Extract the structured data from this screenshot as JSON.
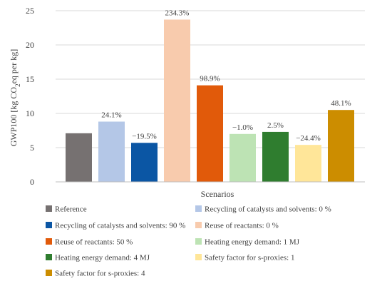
{
  "chart_data": {
    "type": "bar",
    "xlabel": "Scenarios",
    "ylabel": "GWP100 [kg CO2eq per kg]",
    "ylabel_parts": {
      "pre": "GWP100 [kg CO",
      "sub": "2",
      "post": "eq per kg]"
    },
    "ylim": [
      0,
      25
    ],
    "yticks": [
      "0",
      "5",
      "10",
      "15",
      "20",
      "25"
    ],
    "grid": true,
    "legend_position": "bottom",
    "series": [
      {
        "name": "Reference",
        "value": 7.1,
        "label": "",
        "color": "#767171"
      },
      {
        "name": "Recycling of catalysts and solvents: 0 %",
        "value": 8.8,
        "label": "24.1%",
        "color": "#b4c7e7"
      },
      {
        "name": "Recycling of catalysts and solvents: 90 %",
        "value": 5.7,
        "label": "−19.5%",
        "color": "#0b56a4"
      },
      {
        "name": "Reuse of reactants: 0 %",
        "value": 23.7,
        "label": "234.3%",
        "color": "#f8cbad"
      },
      {
        "name": "Reuse of reactants: 50 %",
        "value": 14.1,
        "label": "98.9%",
        "color": "#e15a0a"
      },
      {
        "name": "Heating energy demand: 1 MJ",
        "value": 7.0,
        "label": "−1.0%",
        "color": "#bde3b4"
      },
      {
        "name": "Heating energy demand: 4 MJ",
        "value": 7.3,
        "label": "2.5%",
        "color": "#2f7d2f"
      },
      {
        "name": "Safety factor for s-proxies: 1",
        "value": 5.4,
        "label": "−24.4%",
        "color": "#ffe699"
      },
      {
        "name": "Safety factor for s-proxies: 4",
        "value": 10.5,
        "label": "48.1%",
        "color": "#cc8d00"
      }
    ]
  }
}
